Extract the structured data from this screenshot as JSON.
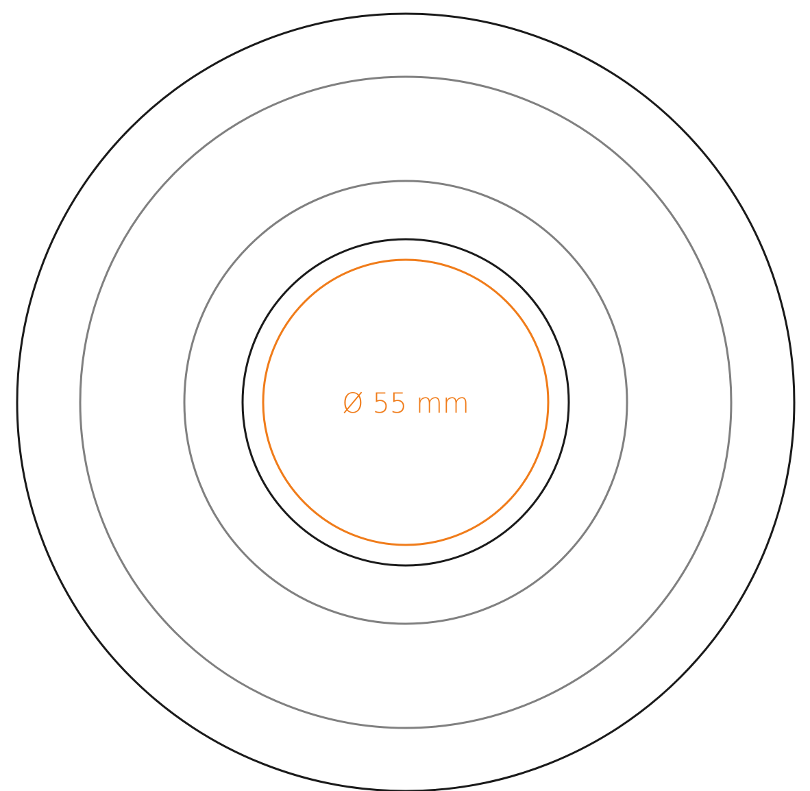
{
  "label": {
    "text": "Ø 55 mm"
  },
  "colors": {
    "background": "#ffffff",
    "outer_ring": "#1a1a1a",
    "gray_ring": "#808080",
    "inner_ring": "#1a1a1a",
    "accent": "#f07c1a"
  },
  "rings": [
    {
      "name": "outer-ring",
      "color_key": "outer_ring"
    },
    {
      "name": "large-gray-ring",
      "color_key": "gray_ring"
    },
    {
      "name": "mid-gray-ring",
      "color_key": "gray_ring"
    },
    {
      "name": "inner-black-ring",
      "color_key": "inner_ring"
    },
    {
      "name": "orange-55mm-ring",
      "color_key": "accent"
    }
  ]
}
